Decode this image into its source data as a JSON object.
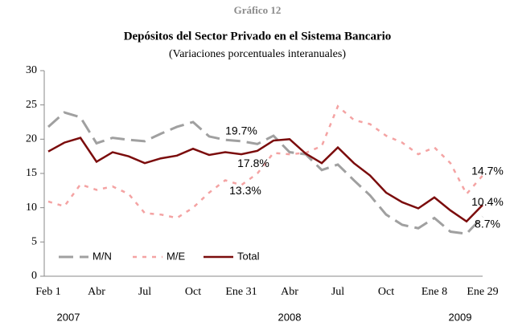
{
  "chart_data": {
    "type": "line",
    "kicker": "Gráfico 12",
    "title": "Depósitos del Sector Privado en el Sistema Bancario",
    "subtitle": "(Variaciones porcentuales interanuales)",
    "categories": [
      "Feb 1",
      null,
      null,
      "Abr",
      null,
      null,
      "Jul",
      null,
      null,
      "Oct",
      null,
      null,
      "Ene 31",
      null,
      null,
      "Abr",
      null,
      null,
      "Jul",
      null,
      null,
      "Oct",
      null,
      null,
      "Ene 8",
      null,
      null,
      "Ene 29"
    ],
    "years": [
      "2007",
      "2008",
      "2009"
    ],
    "series": [
      {
        "name": "M/N",
        "color": "#a0a0a0",
        "values": [
          21.8,
          23.9,
          23.2,
          19.4,
          20.2,
          19.9,
          19.7,
          20.8,
          21.8,
          22.5,
          20.4,
          19.9,
          19.7,
          19.3,
          20.5,
          18.1,
          17.8,
          15.5,
          16.3,
          14.0,
          11.8,
          9.0,
          7.5,
          7.0,
          8.5,
          6.5,
          6.2,
          8.7
        ],
        "value_labels": [
          null,
          null,
          null,
          null,
          null,
          null,
          null,
          null,
          null,
          null,
          null,
          null,
          "19.7%",
          null,
          null,
          null,
          null,
          null,
          null,
          null,
          null,
          null,
          null,
          null,
          null,
          null,
          null,
          "8.7%"
        ]
      },
      {
        "name": "M/E",
        "color": "#f4a3a3",
        "values": [
          10.9,
          10.2,
          13.4,
          12.6,
          13.1,
          12.0,
          9.2,
          9.0,
          8.5,
          10.0,
          12.2,
          14.0,
          13.3,
          15.0,
          18.0,
          17.8,
          18.0,
          19.0,
          24.8,
          22.8,
          22.2,
          20.5,
          19.5,
          17.8,
          18.8,
          16.5,
          12.0,
          14.7
        ],
        "value_labels": [
          null,
          null,
          null,
          null,
          null,
          null,
          null,
          null,
          null,
          null,
          null,
          null,
          "13.3%",
          null,
          null,
          null,
          null,
          null,
          null,
          null,
          null,
          null,
          null,
          null,
          null,
          null,
          null,
          "14.7%"
        ]
      },
      {
        "name": "Total",
        "color": "#7b0c0c",
        "values": [
          18.2,
          19.5,
          20.2,
          16.7,
          18.1,
          17.5,
          16.5,
          17.2,
          17.6,
          18.6,
          17.7,
          18.1,
          17.8,
          18.3,
          19.8,
          20.0,
          17.9,
          16.5,
          18.8,
          16.5,
          14.7,
          12.2,
          10.8,
          9.9,
          11.5,
          9.6,
          8.0,
          10.4
        ],
        "value_labels": [
          null,
          null,
          null,
          null,
          null,
          null,
          null,
          null,
          null,
          null,
          null,
          null,
          "17.8%",
          null,
          null,
          null,
          null,
          null,
          null,
          null,
          null,
          null,
          null,
          null,
          null,
          null,
          null,
          "10.4%"
        ]
      }
    ],
    "ylim": [
      0,
      30
    ],
    "yticks": [
      0,
      5,
      10,
      15,
      20,
      25,
      30
    ]
  }
}
